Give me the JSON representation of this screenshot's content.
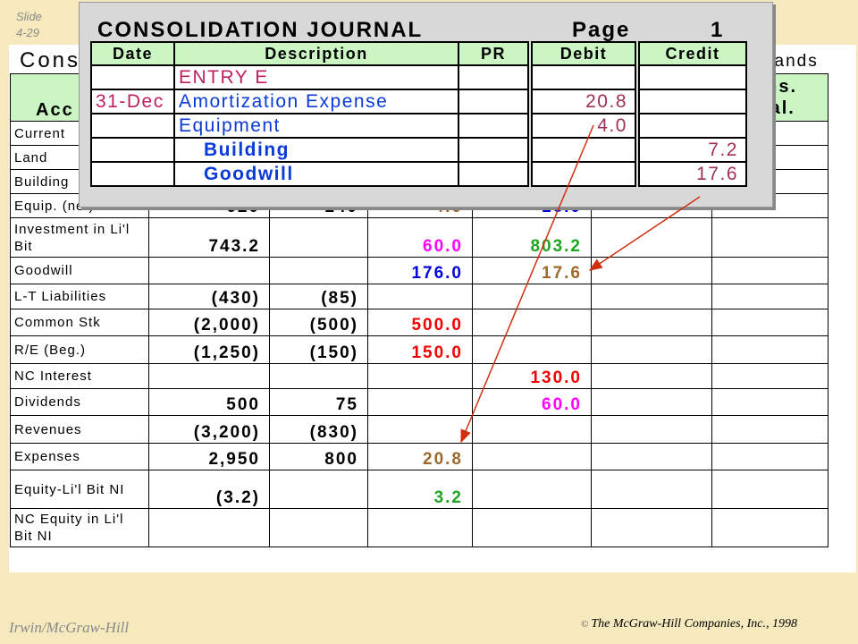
{
  "slide": {
    "label": "Slide",
    "number": "4-29"
  },
  "worksheet": {
    "title_fragment": "Cons",
    "title_right_fragment": "sands",
    "header": {
      "col0": "Acc",
      "col6_line1": "ons.",
      "col6_line2": "Bal."
    },
    "rows": [
      {
        "label": "Current",
        "c1": "",
        "c2": "",
        "c3": "",
        "c4": "",
        "c5": "",
        "c6": ""
      },
      {
        "label": "Land",
        "c1": "",
        "c2": "",
        "c3": "",
        "c4": "",
        "c5": "",
        "c6": ""
      },
      {
        "label": "Building",
        "c1": "",
        "c2": "",
        "c3": "",
        "c4": "",
        "c5": "",
        "c6": ""
      },
      {
        "label": "Equip. (net)",
        "c1": "620",
        "c2": "140",
        "c3": "4.0",
        "c4": "16.0",
        "c5": "",
        "c6": ""
      },
      {
        "label": "Investment in Li'l Bit",
        "c1": "743.2",
        "c2": "",
        "c3": "60.0",
        "c4": "803.2",
        "c5": "",
        "c6": ""
      },
      {
        "label": "Goodwill",
        "c1": "",
        "c2": "",
        "c3": "176.0",
        "c4": "17.6",
        "c5": "",
        "c6": ""
      },
      {
        "label": "L-T Liabilities",
        "c1": "(430)",
        "c2": "(85)",
        "c3": "",
        "c4": "",
        "c5": "",
        "c6": ""
      },
      {
        "label": "Common Stk",
        "c1": "(2,000)",
        "c2": "(500)",
        "c3": "500.0",
        "c4": "",
        "c5": "",
        "c6": ""
      },
      {
        "label": "R/E (Beg.)",
        "c1": "(1,250)",
        "c2": "(150)",
        "c3": "150.0",
        "c4": "",
        "c5": "",
        "c6": ""
      },
      {
        "label": "NC Interest",
        "c1": "",
        "c2": "",
        "c3": "",
        "c4": "130.0",
        "c5": "",
        "c6": ""
      },
      {
        "label": "Dividends",
        "c1": "500",
        "c2": "75",
        "c3": "",
        "c4": "60.0",
        "c5": "",
        "c6": ""
      },
      {
        "label": "Revenues",
        "c1": "(3,200)",
        "c2": "(830)",
        "c3": "",
        "c4": "",
        "c5": "",
        "c6": ""
      },
      {
        "label": "Expenses",
        "c1": "2,950",
        "c2": "800",
        "c3": "20.8",
        "c4": "",
        "c5": "",
        "c6": ""
      },
      {
        "label": "Equity-Li'l Bit NI",
        "c1": "(3.2)",
        "c2": "",
        "c3": "3.2",
        "c4": "",
        "c5": "",
        "c6": ""
      },
      {
        "label": "NC Equity in Li'l Bit NI",
        "c1": "",
        "c2": "",
        "c3": "",
        "c4": "",
        "c5": "",
        "c6": ""
      }
    ]
  },
  "journal": {
    "title": "CONSOLIDATION JOURNAL",
    "page_label": "Page",
    "page_number": "1",
    "columns": {
      "date": "Date",
      "description": "Description",
      "pr": "PR",
      "debit": "Debit",
      "credit": "Credit"
    },
    "entries": [
      {
        "date": "",
        "description": "ENTRY E",
        "pr": "",
        "debit": "",
        "credit": ""
      },
      {
        "date": "31-Dec",
        "description": "Amortization Expense",
        "pr": "",
        "debit": "20.8",
        "credit": ""
      },
      {
        "date": "",
        "description": "Equipment",
        "pr": "",
        "debit": "4.0",
        "credit": ""
      },
      {
        "date": "",
        "description": "Building",
        "pr": "",
        "debit": "",
        "credit": "7.2"
      },
      {
        "date": "",
        "description": "Goodwill",
        "pr": "",
        "debit": "",
        "credit": "17.6"
      }
    ]
  },
  "colors": {
    "background": "#f6e9bd",
    "header_green": "#ccf5c4",
    "journal_blue": "#0a3ad8",
    "arrow": "#d03010"
  },
  "footer": {
    "left": "Irwin/McGraw-Hill",
    "right": "The McGraw-Hill Companies, Inc., 1998",
    "copyright_icon": "copyright-icon"
  }
}
